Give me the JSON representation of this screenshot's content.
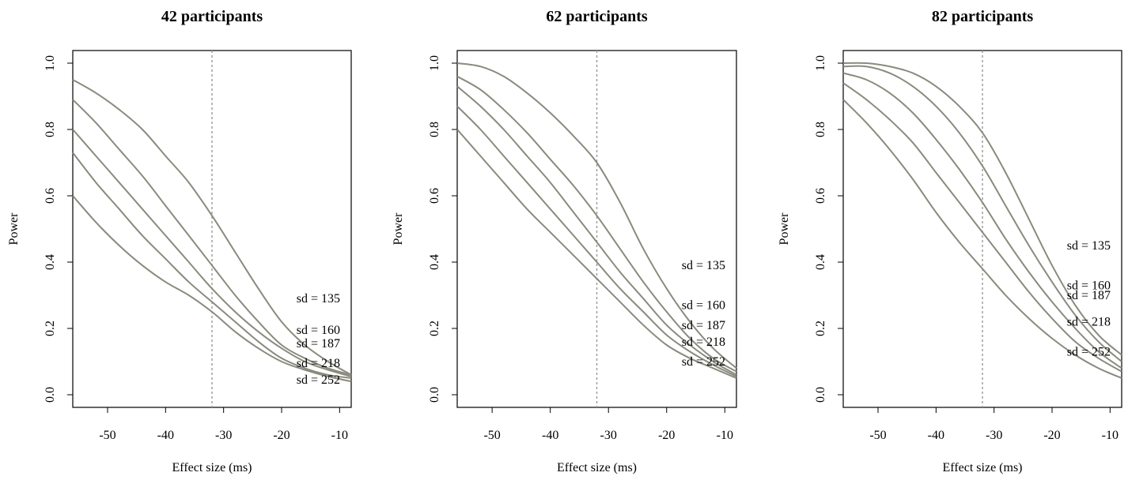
{
  "chart_data": [
    {
      "type": "line",
      "title": "42 participants",
      "xlabel": "Effect size (ms)",
      "ylabel": "Power",
      "xlim": [
        -56,
        -8
      ],
      "ylim": [
        0,
        1
      ],
      "xticks": [
        "-50",
        "-40",
        "-30",
        "-20",
        "-10"
      ],
      "yticks": [
        "0.0",
        "0.2",
        "0.4",
        "0.6",
        "0.8",
        "1.0"
      ],
      "reference_x": -32,
      "x": [
        -56,
        -52,
        -48,
        -44,
        -40,
        -36,
        -32,
        -28,
        -24,
        -20,
        -16,
        -12,
        -8
      ],
      "series": [
        {
          "name": "sd = 135",
          "label_y": 0.29,
          "values": [
            0.95,
            0.91,
            0.86,
            0.8,
            0.72,
            0.64,
            0.54,
            0.43,
            0.32,
            0.22,
            0.15,
            0.1,
            0.06
          ]
        },
        {
          "name": "sd = 160",
          "label_y": 0.195,
          "values": [
            0.89,
            0.82,
            0.74,
            0.66,
            0.57,
            0.48,
            0.39,
            0.3,
            0.22,
            0.15,
            0.11,
            0.08,
            0.06
          ]
        },
        {
          "name": "sd = 187",
          "label_y": 0.155,
          "values": [
            0.8,
            0.72,
            0.64,
            0.56,
            0.48,
            0.4,
            0.32,
            0.25,
            0.19,
            0.14,
            0.1,
            0.075,
            0.055
          ]
        },
        {
          "name": "sd = 218",
          "label_y": 0.095,
          "values": [
            0.73,
            0.64,
            0.56,
            0.48,
            0.41,
            0.34,
            0.28,
            0.22,
            0.16,
            0.11,
            0.08,
            0.06,
            0.05
          ]
        },
        {
          "name": "sd = 252",
          "label_y": 0.045,
          "values": [
            0.6,
            0.52,
            0.45,
            0.39,
            0.34,
            0.3,
            0.25,
            0.19,
            0.14,
            0.1,
            0.075,
            0.055,
            0.04
          ]
        }
      ]
    },
    {
      "type": "line",
      "title": "62 participants",
      "xlabel": "Effect size (ms)",
      "ylabel": "Power",
      "xlim": [
        -56,
        -8
      ],
      "ylim": [
        0,
        1
      ],
      "xticks": [
        "-50",
        "-40",
        "-30",
        "-20",
        "-10"
      ],
      "yticks": [
        "0.0",
        "0.2",
        "0.4",
        "0.6",
        "0.8",
        "1.0"
      ],
      "reference_x": -32,
      "x": [
        -56,
        -52,
        -48,
        -44,
        -40,
        -36,
        -32,
        -28,
        -24,
        -20,
        -16,
        -12,
        -8
      ],
      "series": [
        {
          "name": "sd = 135",
          "label_y": 0.39,
          "values": [
            1.0,
            0.99,
            0.96,
            0.91,
            0.85,
            0.78,
            0.7,
            0.58,
            0.44,
            0.32,
            0.22,
            0.14,
            0.08
          ]
        },
        {
          "name": "sd = 160",
          "label_y": 0.27,
          "values": [
            0.96,
            0.92,
            0.86,
            0.79,
            0.71,
            0.63,
            0.54,
            0.44,
            0.34,
            0.25,
            0.17,
            0.11,
            0.07
          ]
        },
        {
          "name": "sd = 187",
          "label_y": 0.21,
          "values": [
            0.93,
            0.87,
            0.8,
            0.72,
            0.64,
            0.55,
            0.46,
            0.37,
            0.29,
            0.21,
            0.15,
            0.1,
            0.06
          ]
        },
        {
          "name": "sd = 218",
          "label_y": 0.16,
          "values": [
            0.87,
            0.8,
            0.72,
            0.64,
            0.56,
            0.48,
            0.4,
            0.32,
            0.25,
            0.18,
            0.13,
            0.09,
            0.055
          ]
        },
        {
          "name": "sd = 252",
          "label_y": 0.1,
          "values": [
            0.8,
            0.72,
            0.64,
            0.56,
            0.49,
            0.42,
            0.35,
            0.28,
            0.21,
            0.15,
            0.11,
            0.08,
            0.05
          ]
        }
      ]
    },
    {
      "type": "line",
      "title": "82 participants",
      "xlabel": "Effect size (ms)",
      "ylabel": "Power",
      "xlim": [
        -56,
        -8
      ],
      "ylim": [
        0,
        1
      ],
      "xticks": [
        "-50",
        "-40",
        "-30",
        "-20",
        "-10"
      ],
      "yticks": [
        "0.0",
        "0.2",
        "0.4",
        "0.6",
        "0.8",
        "1.0"
      ],
      "reference_x": -32,
      "x": [
        -56,
        -52,
        -48,
        -44,
        -40,
        -36,
        -32,
        -28,
        -24,
        -20,
        -16,
        -12,
        -8
      ],
      "series": [
        {
          "name": "sd = 135",
          "label_y": 0.45,
          "values": [
            1.0,
            1.0,
            0.99,
            0.97,
            0.93,
            0.87,
            0.79,
            0.67,
            0.53,
            0.39,
            0.27,
            0.18,
            0.12
          ]
        },
        {
          "name": "sd = 160",
          "label_y": 0.33,
          "values": [
            0.99,
            0.99,
            0.97,
            0.93,
            0.87,
            0.79,
            0.69,
            0.57,
            0.45,
            0.34,
            0.24,
            0.16,
            0.1
          ]
        },
        {
          "name": "sd = 187",
          "label_y": 0.3,
          "values": [
            0.97,
            0.95,
            0.91,
            0.85,
            0.77,
            0.68,
            0.58,
            0.47,
            0.37,
            0.28,
            0.2,
            0.13,
            0.08
          ]
        },
        {
          "name": "sd = 218",
          "label_y": 0.22,
          "values": [
            0.94,
            0.89,
            0.83,
            0.76,
            0.67,
            0.58,
            0.49,
            0.4,
            0.31,
            0.23,
            0.16,
            0.11,
            0.07
          ]
        },
        {
          "name": "sd = 252",
          "label_y": 0.13,
          "values": [
            0.89,
            0.82,
            0.74,
            0.65,
            0.55,
            0.46,
            0.38,
            0.3,
            0.23,
            0.17,
            0.12,
            0.08,
            0.05
          ]
        }
      ]
    }
  ]
}
